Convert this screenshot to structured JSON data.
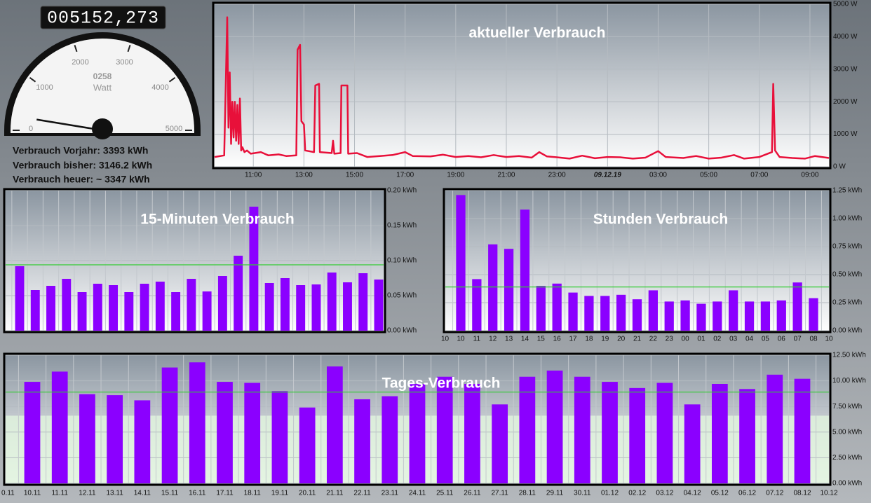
{
  "counter": "005152,273",
  "stats": [
    "Verbrauch Vorjahr: 3393 kWh",
    "Verbrauch bisher: 3146.2 kWh",
    "Verbrauch heuer: ~ 3347 kWh"
  ],
  "chart_data": [
    {
      "type": "gauge",
      "values": [
        258
      ],
      "value_labels": [
        "0258"
      ],
      "unit": "Watt",
      "ylim": [
        0,
        5000
      ],
      "yticks": [
        0,
        1000,
        2000,
        3000,
        4000,
        5000
      ]
    },
    {
      "type": "line",
      "title": "aktueller Verbrauch",
      "color": "#e8103a",
      "x": [
        9.47,
        9.85,
        9.91,
        9.97,
        10.02,
        10.07,
        10.12,
        10.17,
        10.22,
        10.27,
        10.32,
        10.37,
        10.42,
        10.47,
        10.52,
        10.57,
        10.65,
        10.75,
        10.9,
        11.3,
        11.6,
        12.0,
        12.3,
        12.7,
        12.75,
        12.85,
        12.9,
        13.0,
        13.05,
        13.4,
        13.45,
        13.6,
        13.63,
        14.1,
        14.15,
        14.2,
        14.45,
        14.48,
        14.72,
        14.75,
        15.1,
        15.5,
        16.0,
        16.5,
        17.0,
        17.3,
        18.0,
        18.5,
        19.0,
        19.5,
        20.0,
        20.5,
        21.0,
        21.5,
        22.0,
        22.3,
        22.6,
        23.0,
        23.5,
        24.0,
        24.5,
        25.0,
        25.5,
        26.0,
        26.5,
        27.0,
        27.3,
        28.0,
        28.5,
        29.0,
        29.5,
        30.0,
        30.4,
        31.0,
        31.5,
        31.55,
        31.62,
        31.8,
        32.3,
        32.8,
        33.2,
        33.75
      ],
      "values": [
        300,
        350,
        2500,
        4600,
        1200,
        2900,
        700,
        2000,
        900,
        2000,
        800,
        1900,
        700,
        2100,
        500,
        600,
        450,
        500,
        400,
        450,
        350,
        380,
        330,
        350,
        3600,
        3750,
        1400,
        1300,
        500,
        450,
        2500,
        2550,
        450,
        420,
        800,
        400,
        420,
        2500,
        2500,
        400,
        420,
        300,
        330,
        360,
        450,
        330,
        320,
        370,
        300,
        330,
        290,
        360,
        300,
        330,
        280,
        450,
        320,
        290,
        250,
        340,
        260,
        300,
        290,
        250,
        280,
        480,
        300,
        270,
        330,
        250,
        280,
        360,
        250,
        300,
        450,
        2550,
        500,
        300,
        270,
        250,
        330,
        270
      ],
      "xlim": [
        9.47,
        33.75
      ],
      "xticks": [
        {
          "value": 11,
          "label": "11:00"
        },
        {
          "value": 13,
          "label": "13:00"
        },
        {
          "value": 15,
          "label": "15:00"
        },
        {
          "value": 17,
          "label": "17:00"
        },
        {
          "value": 19,
          "label": "19:00"
        },
        {
          "value": 21,
          "label": "21:00"
        },
        {
          "value": 23,
          "label": "23:00"
        },
        {
          "value": 25,
          "label": "09.12.19"
        },
        {
          "value": 27,
          "label": "03:00"
        },
        {
          "value": 29,
          "label": "05:00"
        },
        {
          "value": 31,
          "label": "07:00"
        },
        {
          "value": 33,
          "label": "09:00"
        }
      ],
      "ylim": [
        0,
        5000
      ],
      "yticks": [
        {
          "value": 0,
          "label": "0 W"
        },
        {
          "value": 1000,
          "label": "1000 W"
        },
        {
          "value": 2000,
          "label": "2000 W"
        },
        {
          "value": 3000,
          "label": "3000 W"
        },
        {
          "value": 4000,
          "label": "4000 W"
        },
        {
          "value": 5000,
          "label": "5000 W"
        }
      ]
    },
    {
      "type": "bar",
      "title": "15-Minuten Verbrauch",
      "color": "#8b00ff",
      "values": [
        0.092,
        0.058,
        0.064,
        0.074,
        0.055,
        0.067,
        0.065,
        0.055,
        0.067,
        0.07,
        0.055,
        0.074,
        0.056,
        0.078,
        0.107,
        0.177,
        0.068,
        0.075,
        0.065,
        0.066,
        0.083,
        0.069,
        0.082,
        0.073
      ],
      "average": {
        "value": 0.094,
        "color": "#33cc33"
      },
      "ylim": [
        0,
        0.2
      ],
      "yticks": [
        {
          "value": 0,
          "label": "0.00 kWh"
        },
        {
          "value": 0.05,
          "label": "0.05 kWh"
        },
        {
          "value": 0.1,
          "label": "0.10 kWh"
        },
        {
          "value": 0.15,
          "label": "0.15 kWh"
        },
        {
          "value": 0.2,
          "label": "0.20 kWh"
        }
      ]
    },
    {
      "type": "bar",
      "title": "Stunden Verbrauch",
      "color": "#8b00ff",
      "categories": [
        "10",
        "11",
        "12",
        "13",
        "14",
        "15",
        "16",
        "17",
        "18",
        "19",
        "20",
        "21",
        "22",
        "23",
        "00",
        "01",
        "02",
        "03",
        "04",
        "05",
        "06",
        "07",
        "08"
      ],
      "x_edge_labels": [
        "10",
        "10"
      ],
      "values": [
        1.21,
        0.46,
        0.77,
        0.73,
        1.08,
        0.4,
        0.42,
        0.34,
        0.31,
        0.31,
        0.32,
        0.28,
        0.36,
        0.26,
        0.27,
        0.24,
        0.26,
        0.36,
        0.26,
        0.26,
        0.27,
        0.43,
        0.29
      ],
      "average": {
        "value": 0.39,
        "color": "#33cc33"
      },
      "ylim": [
        0,
        1.25
      ],
      "yticks": [
        {
          "value": 0,
          "label": "0.00 kWh"
        },
        {
          "value": 0.25,
          "label": "0.25 kWh"
        },
        {
          "value": 0.5,
          "label": "0.50 kWh"
        },
        {
          "value": 0.75,
          "label": "0.75 kWh"
        },
        {
          "value": 1,
          "label": "1.00 kWh"
        },
        {
          "value": 1.25,
          "label": "1.25 kWh"
        }
      ]
    },
    {
      "type": "bar",
      "title": "Tages-Verbrauch",
      "color": "#8b00ff",
      "categories": [
        "10.11",
        "11.11",
        "12.11",
        "13.11",
        "14.11",
        "15.11",
        "16.11",
        "17.11",
        "18.11",
        "19.11",
        "20.11",
        "21.11",
        "22.11",
        "23.11",
        "24.11",
        "25.11",
        "26.11",
        "27.11",
        "28.11",
        "29.11",
        "30.11",
        "01.12",
        "02.12",
        "03.12",
        "04.12",
        "05.12",
        "06.12",
        "07.12",
        "08.12"
      ],
      "x_edge_labels": [
        "0.11",
        "10.12"
      ],
      "values": [
        9.9,
        10.9,
        8.7,
        8.6,
        8.1,
        11.3,
        11.8,
        9.9,
        9.8,
        9.0,
        7.4,
        11.4,
        8.2,
        8.5,
        9.7,
        10.4,
        9.7,
        7.7,
        10.4,
        11.0,
        10.4,
        9.9,
        9.3,
        9.8,
        7.7,
        9.7,
        9.2,
        10.6,
        10.2
      ],
      "average": {
        "value": 8.9,
        "color": "#33cc33"
      },
      "band": {
        "value": 6.6,
        "color": "#dff2dd"
      },
      "ylim": [
        0,
        12.5
      ],
      "yticks": [
        {
          "value": 0,
          "label": "0.00 kWh"
        },
        {
          "value": 2.5,
          "label": "2.50 kWh"
        },
        {
          "value": 5,
          "label": "5.00 kWh"
        },
        {
          "value": 7.5,
          "label": "7.50 kWh"
        },
        {
          "value": 10,
          "label": "10.00 kWh"
        },
        {
          "value": 12.5,
          "label": "12.50 kWh"
        }
      ]
    }
  ]
}
